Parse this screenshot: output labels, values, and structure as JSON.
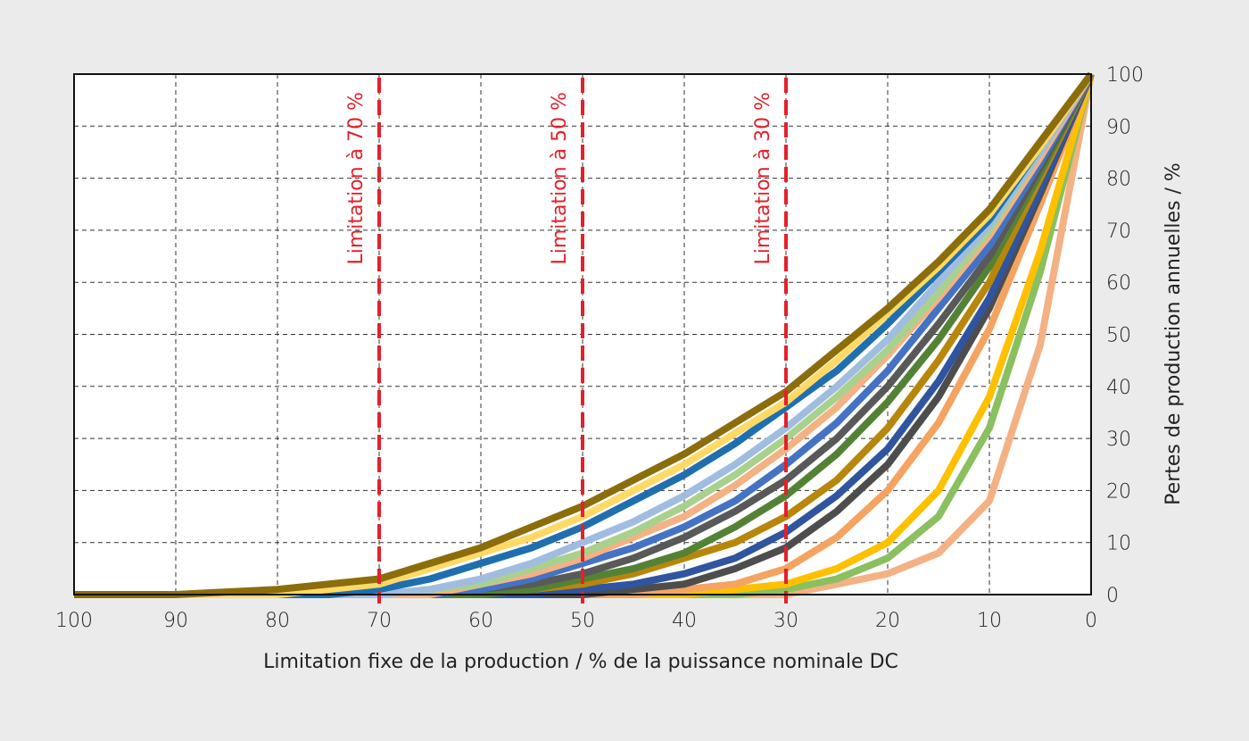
{
  "chart_data": {
    "type": "line",
    "xlabel": "Limitation fixe de la production / % de la puissance nominale DC",
    "ylabel": "Pertes de production annuelles / %",
    "xlim": [
      100,
      0
    ],
    "ylim": [
      0,
      100
    ],
    "x_reversed": true,
    "grid": true,
    "y_axis_position": "right",
    "x_ticks": [
      "100",
      "90",
      "80",
      "70",
      "60",
      "50",
      "40",
      "30",
      "20",
      "10",
      "0"
    ],
    "y_ticks": [
      "0",
      "10",
      "20",
      "30",
      "40",
      "50",
      "60",
      "70",
      "80",
      "90",
      "100"
    ],
    "reference_lines": [
      {
        "x": 70,
        "label": "Limitation à 70 %",
        "color": "#e3212b"
      },
      {
        "x": 50,
        "label": "Limitation à 50 %",
        "color": "#e3212b"
      },
      {
        "x": 30,
        "label": "Limitation à 30 %",
        "color": "#e3212b"
      }
    ],
    "x": [
      100,
      90,
      80,
      75,
      70,
      65,
      60,
      55,
      50,
      45,
      40,
      35,
      30,
      25,
      20,
      15,
      10,
      5,
      0
    ],
    "series": [
      {
        "color": "#f4b183",
        "values": [
          0,
          0,
          0,
          0,
          0,
          0,
          0,
          0,
          0,
          0,
          0,
          0,
          0,
          2,
          4,
          8,
          18,
          48,
          100
        ]
      },
      {
        "color": "#8ac060",
        "values": [
          0,
          0,
          0,
          0,
          0,
          0,
          0,
          0,
          0,
          0,
          0,
          0,
          1,
          3,
          7,
          15,
          32,
          62,
          100
        ]
      },
      {
        "color": "#ffc000",
        "values": [
          0,
          0,
          0,
          0,
          0,
          0,
          0,
          0,
          0,
          0,
          0,
          1,
          2,
          5,
          10,
          20,
          38,
          66,
          100
        ]
      },
      {
        "color": "#f4a460",
        "values": [
          0,
          0,
          0,
          0,
          0,
          0,
          0,
          0,
          0,
          0,
          1,
          2,
          5,
          11,
          20,
          33,
          51,
          75,
          100
        ]
      },
      {
        "color": "#4d4d4d",
        "values": [
          0,
          0,
          0,
          0,
          0,
          0,
          0,
          0,
          0,
          1,
          2,
          5,
          9,
          16,
          25,
          38,
          55,
          77,
          100
        ]
      },
      {
        "color": "#2f55a0",
        "values": [
          0,
          0,
          0,
          0,
          0,
          0,
          0,
          0,
          1,
          2,
          4,
          7,
          12,
          19,
          28,
          41,
          57,
          78,
          100
        ]
      },
      {
        "color": "#b8860b",
        "values": [
          0,
          0,
          0,
          0,
          0,
          0,
          0,
          1,
          2,
          4,
          7,
          10,
          15,
          22,
          32,
          45,
          60,
          80,
          100
        ]
      },
      {
        "color": "#548235",
        "values": [
          0,
          0,
          0,
          0,
          0,
          0,
          0,
          1,
          3,
          5,
          8,
          13,
          19,
          27,
          37,
          49,
          63,
          81,
          100
        ]
      },
      {
        "color": "#595959",
        "values": [
          0,
          0,
          0,
          0,
          0,
          0,
          1,
          2,
          4,
          7,
          11,
          16,
          22,
          30,
          40,
          52,
          65,
          82,
          100
        ]
      },
      {
        "color": "#4472c4",
        "values": [
          0,
          0,
          0,
          0,
          0,
          0,
          1,
          3,
          6,
          9,
          13,
          18,
          25,
          33,
          43,
          55,
          67,
          83,
          100
        ]
      },
      {
        "color": "#f4b183",
        "values": [
          0,
          0,
          0,
          0,
          0,
          0,
          2,
          4,
          7,
          11,
          15,
          21,
          28,
          36,
          46,
          57,
          69,
          84,
          100
        ]
      },
      {
        "color": "#a9d18e",
        "values": [
          0,
          0,
          0,
          0,
          0,
          1,
          2,
          5,
          8,
          12,
          17,
          23,
          30,
          38,
          47,
          58,
          70,
          85,
          100
        ]
      },
      {
        "color": "#a0bde0",
        "values": [
          0,
          0,
          0,
          0,
          0,
          1,
          3,
          6,
          10,
          14,
          19,
          25,
          32,
          40,
          49,
          60,
          71,
          85,
          100
        ]
      },
      {
        "color": "#1f6fb0",
        "values": [
          0,
          0,
          0,
          0,
          1,
          3,
          6,
          9,
          13,
          18,
          23,
          29,
          36,
          43,
          52,
          62,
          72,
          86,
          100
        ]
      },
      {
        "color": "#ffd966",
        "values": [
          0,
          0,
          0,
          1,
          2,
          5,
          8,
          11,
          15,
          20,
          25,
          31,
          37,
          45,
          54,
          63,
          73,
          86,
          100
        ]
      },
      {
        "color": "#8b6d0b",
        "values": [
          0,
          0,
          1,
          2,
          3,
          6,
          9,
          13,
          17,
          22,
          27,
          33,
          39,
          47,
          55,
          64,
          74,
          87,
          100
        ]
      }
    ]
  }
}
